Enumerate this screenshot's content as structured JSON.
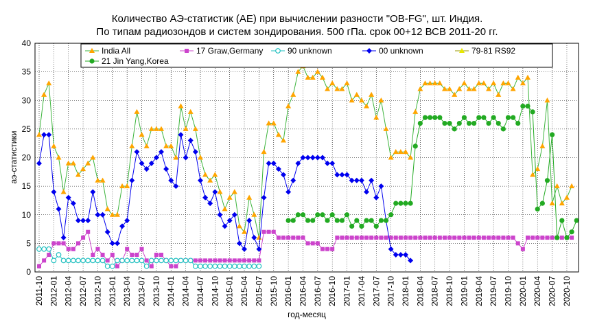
{
  "chart_data": {
    "type": "line",
    "title": "Количество АЭ-статистик (АЕ) при вычислении разности \"OB-FG\", шт. Индия.",
    "subtitle": "По типам радиозондов и систем зондирования. 500 гПа. срок 00+12 ВСВ 2011-20 гг.",
    "xlabel": "год-месяц",
    "ylabel": "аэ-статистики",
    "ylim": [
      0,
      40
    ],
    "yticks": [
      0,
      5,
      10,
      15,
      20,
      25,
      30,
      35,
      40
    ],
    "grid": true,
    "legend_position": "top",
    "x_start": "2011-10",
    "x_tick_labels": [
      "2011-10",
      "2012-01",
      "2012-04",
      "2012-07",
      "2012-10",
      "2013-01",
      "2013-04",
      "2013-07",
      "2013-10",
      "2014-01",
      "2014-04",
      "2014-07",
      "2014-10",
      "2015-01",
      "2015-04",
      "2015-07",
      "2015-10",
      "2016-01",
      "2016-04",
      "2016-07",
      "2016-10",
      "2017-01",
      "2017-04",
      "2017-07",
      "2017-10",
      "2018-01",
      "2018-04",
      "2018-07",
      "2018-10",
      "2019-01",
      "2019-04",
      "2019-07",
      "2019-10",
      "2020-01",
      "2020-04",
      "2020-07",
      "2020-10"
    ],
    "series": [
      {
        "name": "India All",
        "color": "#ffa500",
        "line_color": "#3cb43c",
        "marker": "triangle",
        "values": [
          24,
          31,
          33,
          22,
          20,
          14,
          19,
          19,
          17,
          18,
          19,
          20,
          16,
          16,
          11,
          10,
          10,
          15,
          15,
          22,
          28,
          24,
          22,
          25,
          25,
          25,
          22,
          22,
          20,
          29,
          25,
          28,
          25,
          20,
          17,
          16,
          17,
          14,
          11,
          13,
          14,
          8,
          7,
          13,
          10,
          6,
          21,
          26,
          26,
          24,
          23,
          29,
          31,
          35,
          36,
          34,
          34,
          35,
          34,
          32,
          33,
          32,
          32,
          33,
          30,
          31,
          30,
          29,
          31,
          27,
          30,
          25,
          20,
          21,
          21,
          21,
          20,
          28,
          32,
          33,
          33,
          33,
          33,
          32,
          32,
          31,
          32,
          33,
          32,
          32,
          33,
          33,
          32,
          33,
          31,
          33,
          33,
          32,
          34,
          33,
          34,
          17,
          18,
          22,
          30,
          12,
          15,
          12,
          13,
          15
        ]
      },
      {
        "name": "17 Graw,Germany",
        "color": "#cc44cc",
        "line_color": "#cc44cc",
        "marker": "square",
        "values": [
          1,
          2,
          3,
          5,
          5,
          5,
          4,
          4,
          5,
          6,
          7,
          3,
          4,
          3,
          2,
          3,
          1,
          2,
          4,
          3,
          3,
          4,
          2,
          1,
          3,
          3,
          2,
          1,
          1,
          2,
          2,
          2,
          2,
          2,
          2,
          2,
          2,
          2,
          2,
          2,
          2,
          2,
          2,
          2,
          2,
          2,
          7,
          7,
          7,
          6,
          6,
          6,
          6,
          6,
          6,
          5,
          5,
          5,
          4,
          4,
          4,
          6,
          6,
          6,
          6,
          6,
          6,
          6,
          6,
          6,
          6,
          6,
          6,
          6,
          6,
          6,
          6,
          6,
          6,
          6,
          6,
          6,
          6,
          6,
          6,
          6,
          6,
          6,
          6,
          6,
          6,
          6,
          6,
          6,
          6,
          6,
          6,
          6,
          5,
          4,
          6,
          6,
          6,
          6,
          6,
          6,
          6,
          6,
          6,
          6
        ]
      },
      {
        "name": "90 unknown",
        "color": "#20c0c0",
        "line_color": "#20c0c0",
        "marker": "circle-open",
        "values": [
          4,
          4,
          4,
          2,
          3,
          2,
          2,
          2,
          2,
          2,
          2,
          2,
          2,
          2,
          1,
          1,
          2,
          2,
          2,
          2,
          2,
          2,
          1,
          2,
          2,
          2,
          2,
          2,
          2,
          2,
          2,
          2,
          1,
          1,
          1,
          1,
          1,
          1,
          1,
          1,
          1,
          1,
          1,
          1,
          1,
          1
        ]
      },
      {
        "name": "00 unknown",
        "color": "#0000ee",
        "line_color": "#0000ee",
        "marker": "diamond",
        "values": [
          19,
          24,
          24,
          14,
          11,
          6,
          13,
          12,
          9,
          9,
          9,
          14,
          10,
          10,
          7,
          5,
          5,
          8,
          9,
          16,
          21,
          19,
          18,
          19,
          20,
          21,
          18,
          16,
          15,
          24,
          20,
          23,
          21,
          16,
          13,
          12,
          14,
          10,
          8,
          9,
          10,
          5,
          4,
          9,
          6,
          4,
          13,
          19,
          19,
          18,
          17,
          14,
          16,
          19,
          20,
          20,
          20,
          20,
          20,
          19,
          19,
          17,
          17,
          17,
          16,
          16,
          16,
          14,
          16,
          13,
          15,
          9,
          4,
          3,
          3,
          3,
          2
        ]
      },
      {
        "name": "79-81 RS92",
        "color": "#e8e800",
        "line_color": "#999900",
        "marker": "triangle",
        "values": []
      },
      {
        "name": "21 Jin Yang,Korea",
        "color": "#22aa22",
        "line_color": "#22aa22",
        "marker": "circle",
        "offset": 51,
        "values": [
          9,
          9,
          10,
          10,
          9,
          9,
          10,
          10,
          9,
          10,
          9,
          9,
          10,
          8,
          9,
          8,
          9,
          9,
          8,
          9,
          9,
          10,
          12,
          12,
          12,
          12,
          22,
          26,
          27,
          27,
          27,
          27,
          26,
          26,
          25,
          26,
          27,
          26,
          26,
          27,
          27,
          26,
          27,
          26,
          25,
          27,
          27,
          26,
          29,
          29,
          28,
          11,
          12,
          16,
          24,
          6,
          9,
          6,
          7,
          9
        ]
      }
    ]
  }
}
